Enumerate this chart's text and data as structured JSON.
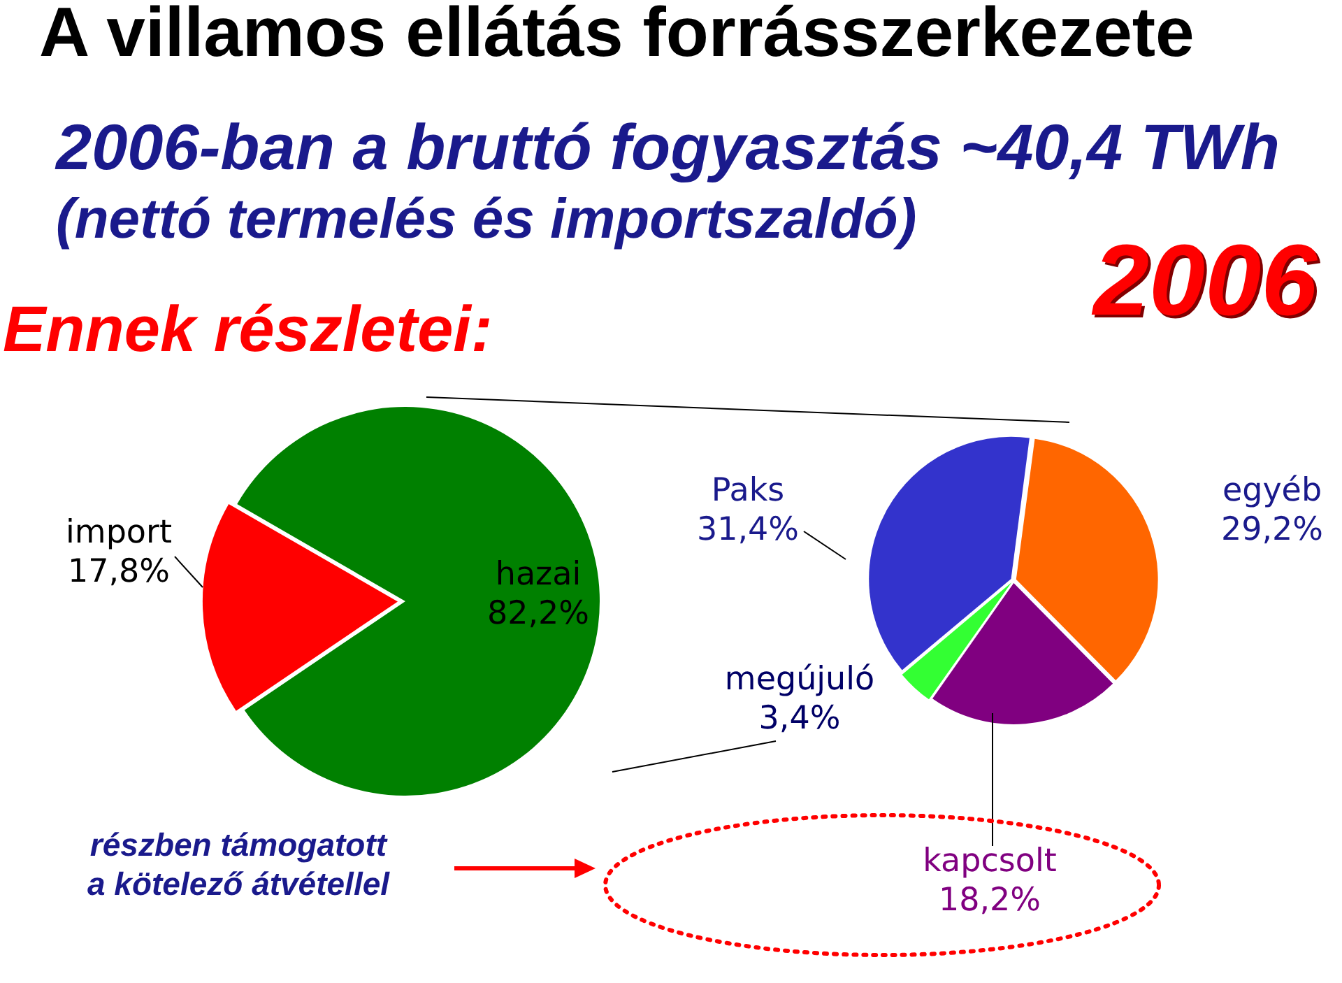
{
  "chart_data": [
    {
      "type": "pie",
      "title": "A villamos ellátás forrásszerkezete",
      "subtitle": "2006-ban a bruttó fogyasztás ~40,4 TWh",
      "annotations": [
        "(nettó termelés és importszaldó)",
        "Ennek részletei:",
        "2006"
      ],
      "categories": [
        "hazai",
        "import"
      ],
      "values": [
        82.2,
        17.8
      ],
      "colors": [
        "#008000",
        "#ff0000"
      ],
      "value_labels": [
        "82,2%",
        "17,8%"
      ],
      "legend": false
    },
    {
      "type": "pie",
      "annotations": [
        "részben támogatott a kötelező átvétellel"
      ],
      "categories": [
        "Paks",
        "egyéb",
        "kapcsolt",
        "megújuló"
      ],
      "values": [
        31.4,
        29.2,
        18.2,
        3.4
      ],
      "colors": [
        "#3333cc",
        "#ff6600",
        "#800080",
        "#33ff33"
      ],
      "value_labels": [
        "31,4%",
        "29,2%",
        "18,2%",
        "3,4%"
      ],
      "legend": false
    }
  ]
}
